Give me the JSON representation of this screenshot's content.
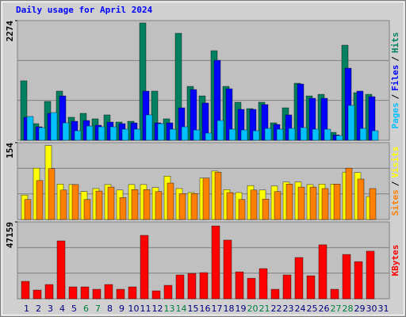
{
  "chart_data": [
    {
      "type": "bar",
      "title": "Daily usage for April 2024",
      "title_color": "#0000ff",
      "ylim": [
        0,
        2274
      ],
      "yticks": [
        2274
      ],
      "grid": true,
      "legend_separator": "/",
      "series": [
        {
          "name": "Hits",
          "color": "#008060",
          "values": [
            1130,
            316,
            738,
            934,
            437,
            512,
            407,
            482,
            346,
            361,
            2229,
            934,
            407,
            2033,
            1024,
            843,
            1702,
            1024,
            723,
            602,
            723,
            331,
            617,
            1084,
            843,
            873,
            150,
            1807,
            904,
            873,
            0
          ]
        },
        {
          "name": "Files",
          "color": "#0000ff",
          "values": [
            437,
            256,
            512,
            843,
            361,
            376,
            286,
            346,
            316,
            331,
            934,
            331,
            331,
            617,
            964,
            708,
            1521,
            979,
            587,
            587,
            678,
            301,
            482,
            1069,
            798,
            798,
            100,
            1370,
            934,
            828,
            0
          ]
        },
        {
          "name": "Pages",
          "color": "#00c0ff",
          "values": [
            452,
            241,
            527,
            331,
            181,
            271,
            256,
            256,
            211,
            211,
            482,
            316,
            211,
            256,
            196,
            136,
            376,
            211,
            196,
            181,
            226,
            211,
            226,
            241,
            211,
            211,
            90,
            663,
            226,
            181,
            0
          ]
        }
      ]
    },
    {
      "type": "bar",
      "ylim": [
        0,
        154
      ],
      "yticks": [
        154
      ],
      "grid": true,
      "legend_separator": "/",
      "series": [
        {
          "name": "Visits",
          "color": "#ffff00",
          "values": [
            49,
            103,
            148,
            71,
            70,
            56,
            62,
            70,
            59,
            70,
            70,
            64,
            87,
            62,
            54,
            83,
            97,
            60,
            54,
            68,
            59,
            67,
            75,
            75,
            70,
            71,
            71,
            95,
            94,
            46,
            0
          ]
        },
        {
          "name": "Sites",
          "color": "#ff8000",
          "values": [
            40,
            78,
            102,
            59,
            70,
            40,
            57,
            65,
            44,
            60,
            60,
            56,
            73,
            52,
            52,
            83,
            95,
            54,
            40,
            59,
            41,
            56,
            71,
            65,
            65,
            62,
            71,
            103,
            81,
            62,
            0
          ]
        }
      ]
    },
    {
      "type": "bar",
      "ylim": [
        0,
        47159
      ],
      "yticks": [
        47159
      ],
      "grid": true,
      "categories": [
        "1",
        "2",
        "3",
        "4",
        "5",
        "6",
        "7",
        "8",
        "9",
        "10",
        "11",
        "12",
        "13",
        "14",
        "15",
        "16",
        "17",
        "18",
        "19",
        "20",
        "21",
        "22",
        "23",
        "24",
        "25",
        "26",
        "27",
        "28",
        "29",
        "30",
        "31"
      ],
      "category_colors": [
        "#000080",
        "#000080",
        "#000080",
        "#000080",
        "#000080",
        "#008040",
        "#008040",
        "#000080",
        "#000080",
        "#000080",
        "#000080",
        "#000080",
        "#008040",
        "#008040",
        "#000080",
        "#000080",
        "#000080",
        "#000080",
        "#000080",
        "#008040",
        "#008040",
        "#000080",
        "#000080",
        "#000080",
        "#000080",
        "#000080",
        "#008040",
        "#008040",
        "#000080",
        "#000080",
        "#000080"
      ],
      "series": [
        {
          "name": "KBytes",
          "color": "#ff0000",
          "values": [
            10700,
            5350,
            8750,
            35500,
            7290,
            7290,
            5830,
            8750,
            5830,
            7290,
            38900,
            4860,
            8260,
            14600,
            15550,
            16050,
            44700,
            36000,
            16500,
            12600,
            18500,
            5830,
            14600,
            25300,
            14100,
            33100,
            5830,
            27200,
            22800,
            29200,
            0
          ]
        }
      ]
    }
  ]
}
